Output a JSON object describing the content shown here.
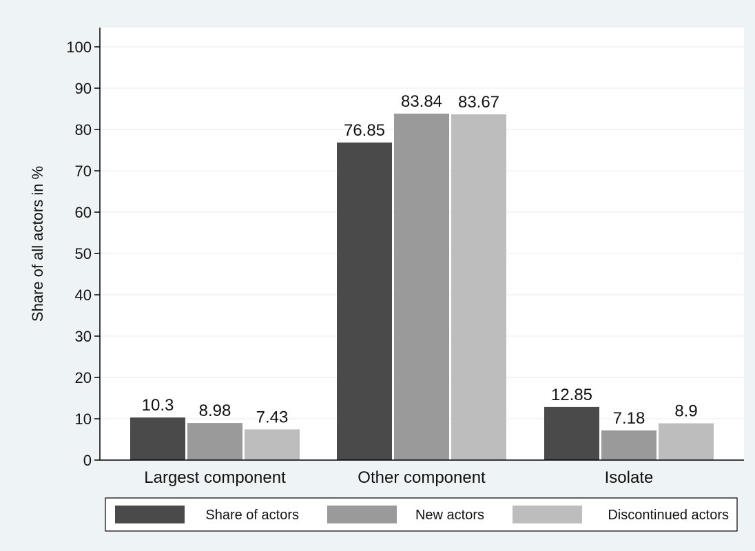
{
  "chart_data": {
    "type": "bar",
    "title": "",
    "xlabel": "",
    "ylabel": "Share of all actors in %",
    "ylim": [
      0,
      100
    ],
    "yticks": [
      0,
      10,
      20,
      30,
      40,
      50,
      60,
      70,
      80,
      90,
      100
    ],
    "categories": [
      "Largest component",
      "Other component",
      "Isolate"
    ],
    "series": [
      {
        "name": "Share of actors",
        "color": "#4a4a4a",
        "values": [
          10.3,
          76.85,
          12.85
        ],
        "labels": [
          "10.3",
          "76.85",
          "12.85"
        ]
      },
      {
        "name": "New actors",
        "color": "#9a9a9a",
        "values": [
          8.98,
          83.84,
          7.18
        ],
        "labels": [
          "8.98",
          "83.84",
          "7.18"
        ]
      },
      {
        "name": "Discontinued actors",
        "color": "#bdbdbd",
        "values": [
          7.43,
          83.67,
          8.9
        ],
        "labels": [
          "7.43",
          "83.67",
          "8.9"
        ]
      }
    ],
    "grid": true,
    "legend_position": "bottom",
    "background_color": "#eef3f6",
    "plot_background_color": "#ffffff",
    "grid_color": "#eaf0f3"
  }
}
